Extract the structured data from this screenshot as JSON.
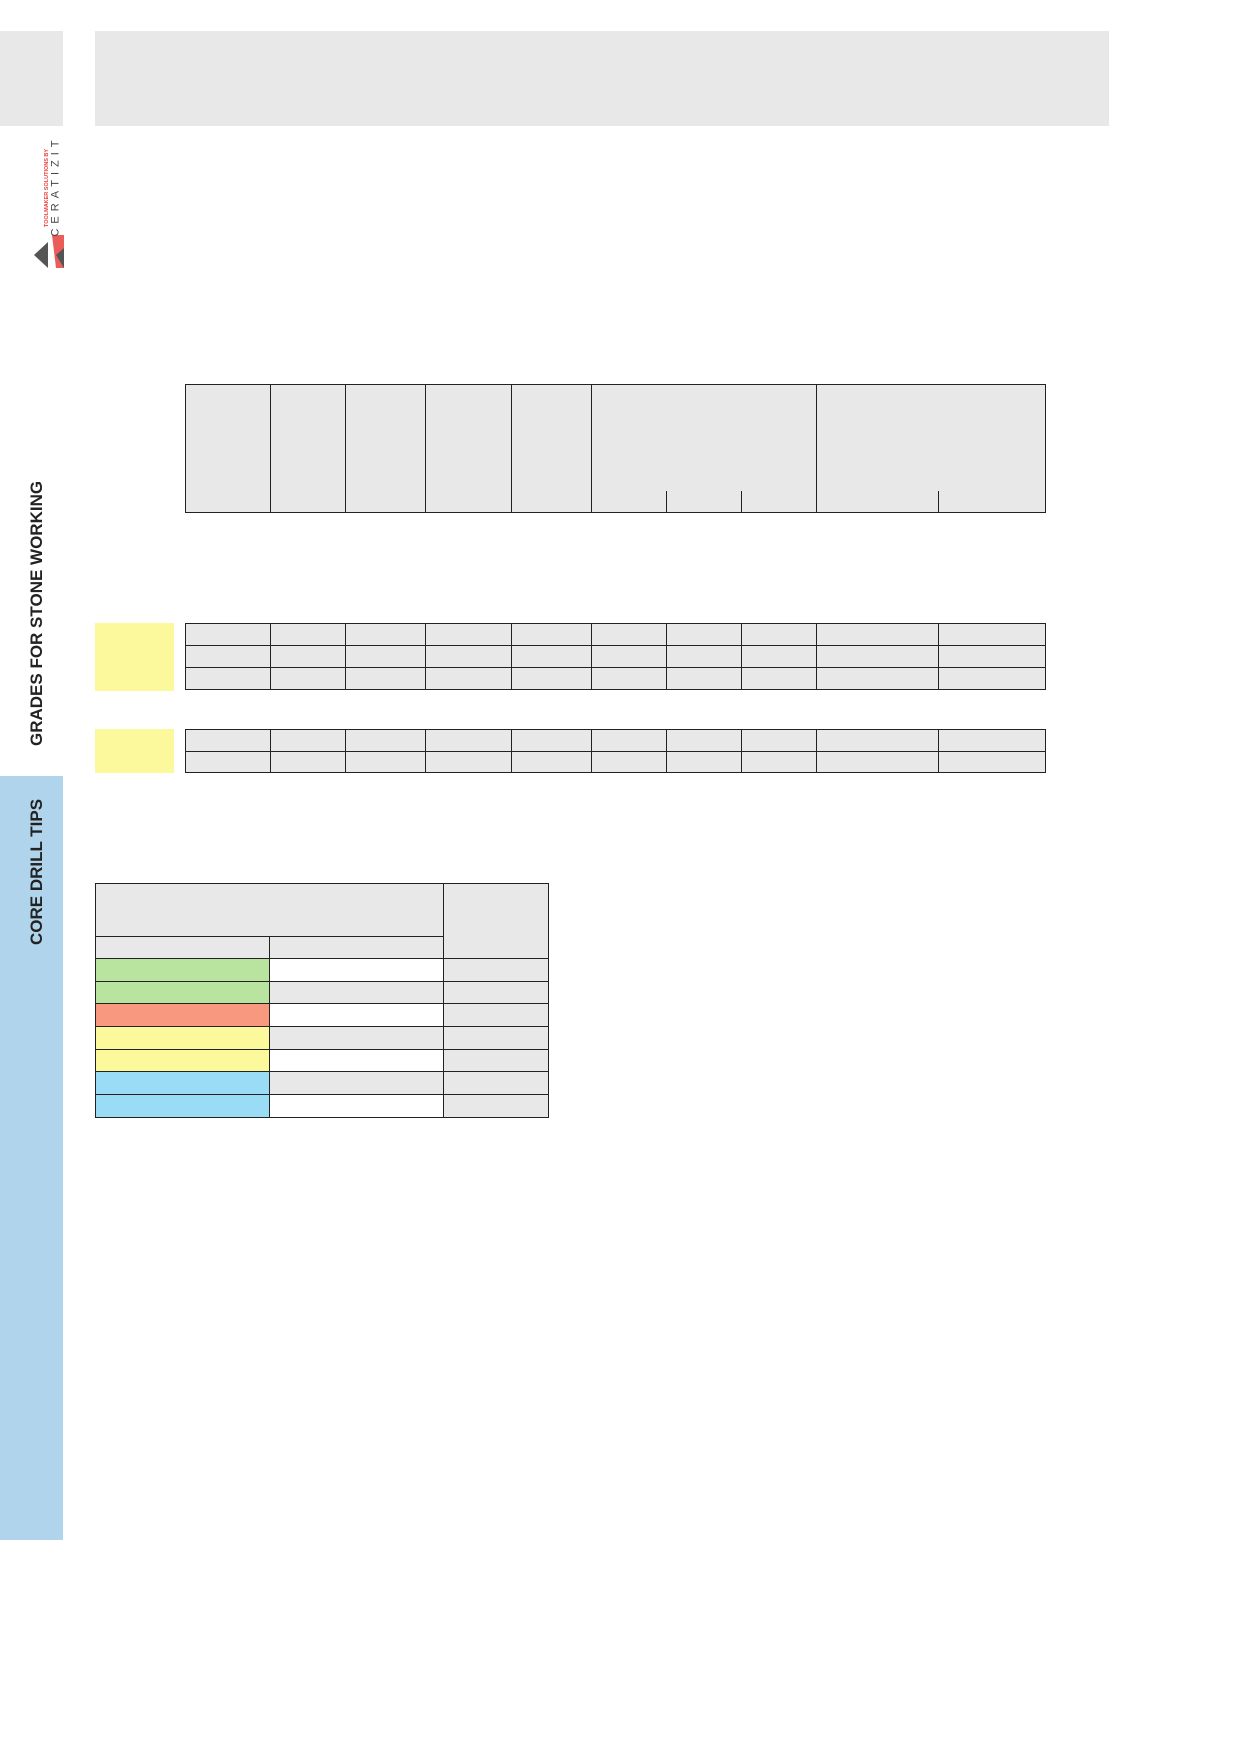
{
  "logo": {
    "tagline": "TOOLMAKER SOLUTIONS BY",
    "brand": "CERATIZIT"
  },
  "sidebar": {
    "section_primary": "GRADES FOR STONE WORKING",
    "section_active": "CORE DRILL TIPS",
    "active_color": "#b0d4ec"
  },
  "colors": {
    "header_gray": "#e8e8e8",
    "group_yellow": "#fcf89c",
    "green": "#b8e4a0",
    "salmon": "#f7987f",
    "yellow": "#fcf89c",
    "blue": "#9adcf5"
  },
  "legend_rows": [
    {
      "color": "#b8e4a0"
    },
    {
      "color": "#b8e4a0"
    },
    {
      "color": "#f7987f"
    },
    {
      "color": "#fcf89c"
    },
    {
      "color": "#fcf89c"
    },
    {
      "color": "#9adcf5"
    },
    {
      "color": "#9adcf5"
    }
  ]
}
